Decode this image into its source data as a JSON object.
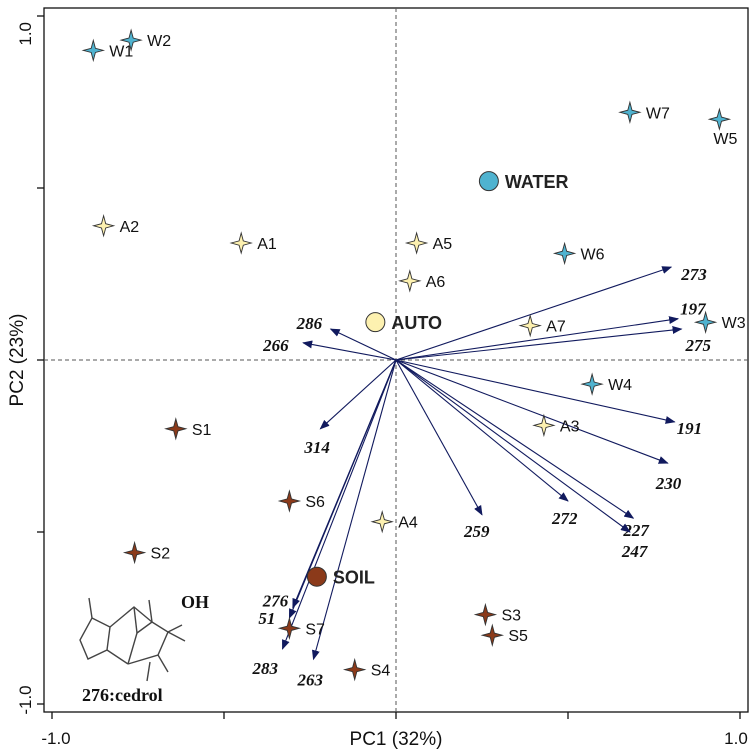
{
  "chart_data": {
    "type": "scatter",
    "subtype": "pca-biplot",
    "title": "",
    "xlabel": "PC1 (32%)",
    "ylabel": "PC2 (23%)",
    "xlim": [
      -1.0,
      1.0
    ],
    "ylim": [
      -1.0,
      1.0
    ],
    "x_tick_labels": [
      "-1.0",
      "1.0"
    ],
    "y_tick_labels": [
      "1.0",
      "-1.0"
    ],
    "grid": false,
    "reference_lines": "x=0 and y=0, dashed",
    "colors": {
      "W": "#4fb3d0",
      "A": "#fdf1b0",
      "S": "#8b3a1a",
      "vector": "#111a5e"
    },
    "series": [
      {
        "name": "W",
        "points": [
          {
            "label": "W1",
            "x": -0.88,
            "y": 0.9
          },
          {
            "label": "W2",
            "x": -0.77,
            "y": 0.93
          },
          {
            "label": "W3",
            "x": 0.9,
            "y": 0.11
          },
          {
            "label": "W4",
            "x": 0.57,
            "y": -0.07
          },
          {
            "label": "W5",
            "x": 0.94,
            "y": 0.7
          },
          {
            "label": "W6",
            "x": 0.49,
            "y": 0.31
          },
          {
            "label": "W7",
            "x": 0.68,
            "y": 0.72
          }
        ]
      },
      {
        "name": "A",
        "points": [
          {
            "label": "A1",
            "x": -0.45,
            "y": 0.34
          },
          {
            "label": "A2",
            "x": -0.85,
            "y": 0.39
          },
          {
            "label": "A3",
            "x": 0.43,
            "y": -0.19
          },
          {
            "label": "A4",
            "x": -0.04,
            "y": -0.47
          },
          {
            "label": "A5",
            "x": 0.06,
            "y": 0.34
          },
          {
            "label": "A6",
            "x": 0.04,
            "y": 0.23
          },
          {
            "label": "A7",
            "x": 0.39,
            "y": 0.1
          }
        ]
      },
      {
        "name": "S",
        "points": [
          {
            "label": "S1",
            "x": -0.64,
            "y": -0.2
          },
          {
            "label": "S2",
            "x": -0.76,
            "y": -0.56
          },
          {
            "label": "S3",
            "x": 0.26,
            "y": -0.74
          },
          {
            "label": "S4",
            "x": -0.12,
            "y": -0.9
          },
          {
            "label": "S5",
            "x": 0.28,
            "y": -0.8
          },
          {
            "label": "S6",
            "x": -0.31,
            "y": -0.41
          },
          {
            "label": "S7",
            "x": -0.31,
            "y": -0.78
          }
        ]
      }
    ],
    "centroids": [
      {
        "label": "WATER",
        "x": 0.27,
        "y": 0.52,
        "color": "#4fb3d0"
      },
      {
        "label": "AUTO",
        "x": -0.06,
        "y": 0.11,
        "color": "#fdf1b0"
      },
      {
        "label": "SOIL",
        "x": -0.23,
        "y": -0.63,
        "color": "#8b3a1a"
      }
    ],
    "vectors": [
      {
        "label": "273",
        "x": 0.8,
        "y": 0.27
      },
      {
        "label": "197",
        "x": 0.82,
        "y": 0.12
      },
      {
        "label": "275",
        "x": 0.83,
        "y": 0.09
      },
      {
        "label": "191",
        "x": 0.81,
        "y": -0.18
      },
      {
        "label": "230",
        "x": 0.79,
        "y": -0.3
      },
      {
        "label": "227",
        "x": 0.69,
        "y": -0.46
      },
      {
        "label": "247",
        "x": 0.68,
        "y": -0.5
      },
      {
        "label": "272",
        "x": 0.5,
        "y": -0.41
      },
      {
        "label": "259",
        "x": 0.25,
        "y": -0.45
      },
      {
        "label": "286",
        "x": -0.19,
        "y": 0.09
      },
      {
        "label": "266",
        "x": -0.27,
        "y": 0.05
      },
      {
        "label": "314",
        "x": -0.22,
        "y": -0.2
      },
      {
        "label": "276",
        "x": -0.3,
        "y": -0.72
      },
      {
        "label": "51",
        "x": -0.31,
        "y": -0.75
      },
      {
        "label": "283",
        "x": -0.33,
        "y": -0.84
      },
      {
        "label": "263",
        "x": -0.24,
        "y": -0.87
      }
    ],
    "annotations": [
      {
        "text": "276:cedrol",
        "hydroxyl_label": "OH",
        "position": "bottom-left"
      }
    ]
  }
}
